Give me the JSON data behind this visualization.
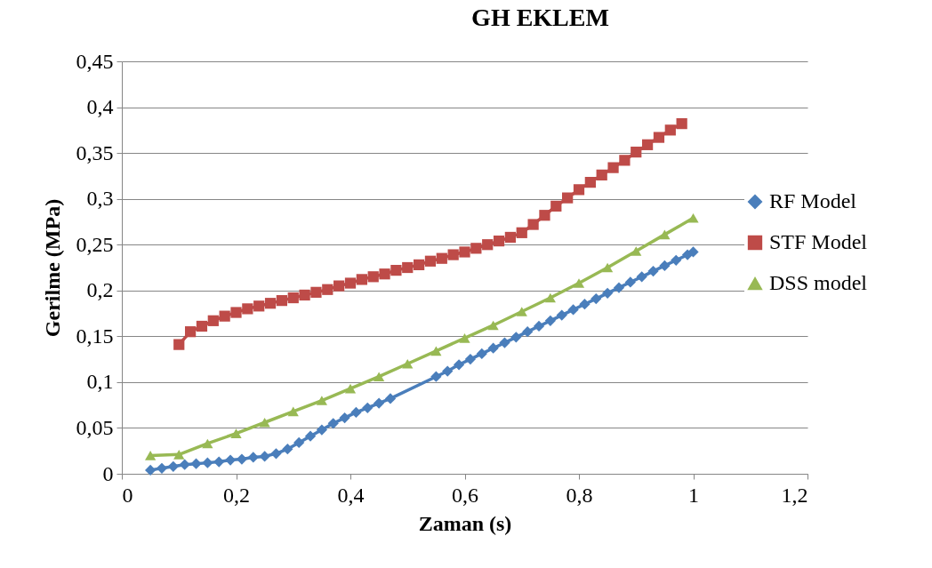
{
  "chart_data": {
    "type": "line",
    "title": "GH EKLEM",
    "xlabel": "Zaman (s)",
    "ylabel": "Gerilme (MPa)",
    "xlim": [
      0,
      1.2
    ],
    "xticks": [
      0,
      {
        "value": 0.2,
        "label": "0,2"
      },
      {
        "value": 0.4,
        "label": "0,4"
      },
      {
        "value": 0.6,
        "label": "0,6"
      },
      {
        "value": 0.8,
        "label": "0,8"
      },
      1,
      {
        "value": 1.2,
        "label": "1,2"
      }
    ],
    "ylim": [
      0,
      0.45
    ],
    "yticks": [
      0,
      {
        "value": 0.05,
        "label": "0,05"
      },
      {
        "value": 0.1,
        "label": "0,1"
      },
      {
        "value": 0.15,
        "label": "0,15"
      },
      {
        "value": 0.2,
        "label": "0,2"
      },
      {
        "value": 0.25,
        "label": "0,25"
      },
      {
        "value": 0.3,
        "label": "0,3"
      },
      {
        "value": 0.35,
        "label": "0,35"
      },
      {
        "value": 0.4,
        "label": "0,4"
      },
      {
        "value": 0.45,
        "label": "0,45"
      }
    ],
    "grid": "y",
    "legend": "right",
    "series": [
      {
        "name": "RF Model",
        "color": "#4a7ebb",
        "marker": "diamond",
        "x": [
          0.05,
          0.07,
          0.09,
          0.11,
          0.13,
          0.15,
          0.17,
          0.19,
          0.21,
          0.23,
          0.25,
          0.27,
          0.29,
          0.31,
          0.33,
          0.35,
          0.37,
          0.39,
          0.41,
          0.43,
          0.45,
          0.47,
          0.55,
          0.57,
          0.59,
          0.61,
          0.63,
          0.65,
          0.67,
          0.69,
          0.71,
          0.73,
          0.75,
          0.77,
          0.79,
          0.81,
          0.83,
          0.85,
          0.87,
          0.89,
          0.91,
          0.93,
          0.95,
          0.97,
          0.99,
          1.0
        ],
        "values": [
          0.004,
          0.006,
          0.008,
          0.01,
          0.011,
          0.012,
          0.013,
          0.015,
          0.016,
          0.018,
          0.019,
          0.022,
          0.027,
          0.034,
          0.041,
          0.048,
          0.055,
          0.061,
          0.067,
          0.072,
          0.077,
          0.082,
          0.106,
          0.112,
          0.119,
          0.125,
          0.131,
          0.137,
          0.143,
          0.149,
          0.155,
          0.161,
          0.167,
          0.173,
          0.179,
          0.185,
          0.191,
          0.197,
          0.203,
          0.209,
          0.215,
          0.221,
          0.227,
          0.233,
          0.239,
          0.242
        ]
      },
      {
        "name": "STF Model",
        "color": "#be4b48",
        "marker": "square",
        "x": [
          0.1,
          0.12,
          0.14,
          0.16,
          0.18,
          0.2,
          0.22,
          0.24,
          0.26,
          0.28,
          0.3,
          0.32,
          0.34,
          0.36,
          0.38,
          0.4,
          0.42,
          0.44,
          0.46,
          0.48,
          0.5,
          0.52,
          0.54,
          0.56,
          0.58,
          0.6,
          0.62,
          0.64,
          0.66,
          0.68,
          0.7,
          0.72,
          0.74,
          0.76,
          0.78,
          0.8,
          0.82,
          0.84,
          0.86,
          0.88,
          0.9,
          0.92,
          0.94,
          0.96,
          0.98
        ],
        "values": [
          0.141,
          0.155,
          0.161,
          0.167,
          0.172,
          0.176,
          0.18,
          0.183,
          0.186,
          0.189,
          0.192,
          0.195,
          0.198,
          0.201,
          0.205,
          0.208,
          0.212,
          0.215,
          0.218,
          0.222,
          0.225,
          0.228,
          0.232,
          0.235,
          0.239,
          0.242,
          0.246,
          0.25,
          0.254,
          0.258,
          0.263,
          0.272,
          0.282,
          0.292,
          0.301,
          0.31,
          0.318,
          0.326,
          0.334,
          0.342,
          0.351,
          0.359,
          0.367,
          0.375,
          0.382
        ]
      },
      {
        "name": "DSS model",
        "color": "#98b954",
        "marker": "triangle",
        "x": [
          0.05,
          0.1,
          0.15,
          0.2,
          0.25,
          0.3,
          0.35,
          0.4,
          0.45,
          0.5,
          0.55,
          0.6,
          0.65,
          0.7,
          0.75,
          0.8,
          0.85,
          0.9,
          0.95,
          1.0
        ],
        "values": [
          0.02,
          0.021,
          0.033,
          0.044,
          0.056,
          0.068,
          0.08,
          0.093,
          0.106,
          0.12,
          0.134,
          0.148,
          0.162,
          0.177,
          0.192,
          0.208,
          0.225,
          0.243,
          0.261,
          0.279
        ]
      }
    ]
  }
}
